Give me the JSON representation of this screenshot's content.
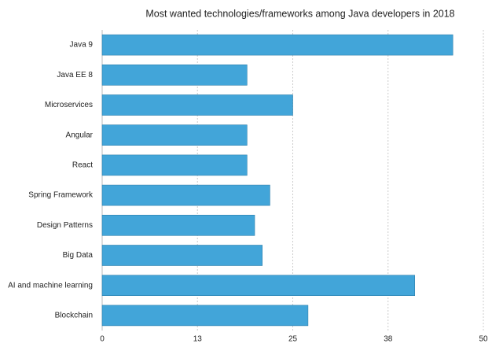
{
  "chart_data": {
    "type": "bar",
    "orientation": "horizontal",
    "title": "Most wanted technologies/frameworks among Java developers in 2018",
    "categories": [
      "Java 9",
      "Java EE 8",
      "Microservices",
      "Angular",
      "React",
      "Spring Framework",
      "Design Patterns",
      "Big Data",
      "AI and machine learning",
      "Blockchain"
    ],
    "values": [
      46,
      19,
      25,
      19,
      19,
      22,
      20,
      21,
      41,
      27
    ],
    "color": "#42a5d9",
    "xlim": [
      0,
      50
    ],
    "xticks": [
      0,
      {
        "value": 12.5,
        "label": "13"
      },
      25,
      {
        "value": 37.5,
        "label": "38"
      },
      50
    ],
    "grid": true
  }
}
